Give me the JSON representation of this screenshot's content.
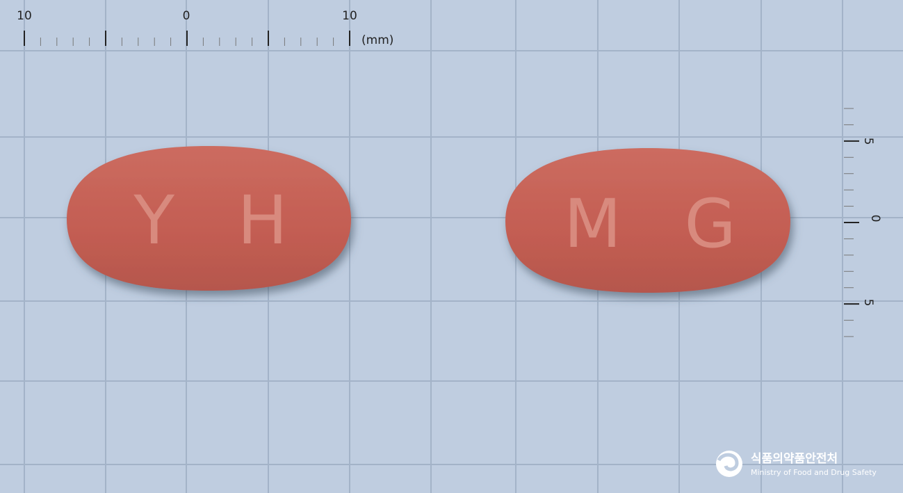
{
  "ruler_top": {
    "labels": [
      "10",
      "0",
      "10"
    ],
    "unit": "(mm)"
  },
  "ruler_right": {
    "labels": [
      "5",
      "0",
      "5"
    ]
  },
  "pills": [
    {
      "imprint": "Y H"
    },
    {
      "imprint": "M G"
    }
  ],
  "logo": {
    "korean": "식품의약품안전처",
    "english": "Ministry of Food and Drug Safety"
  }
}
